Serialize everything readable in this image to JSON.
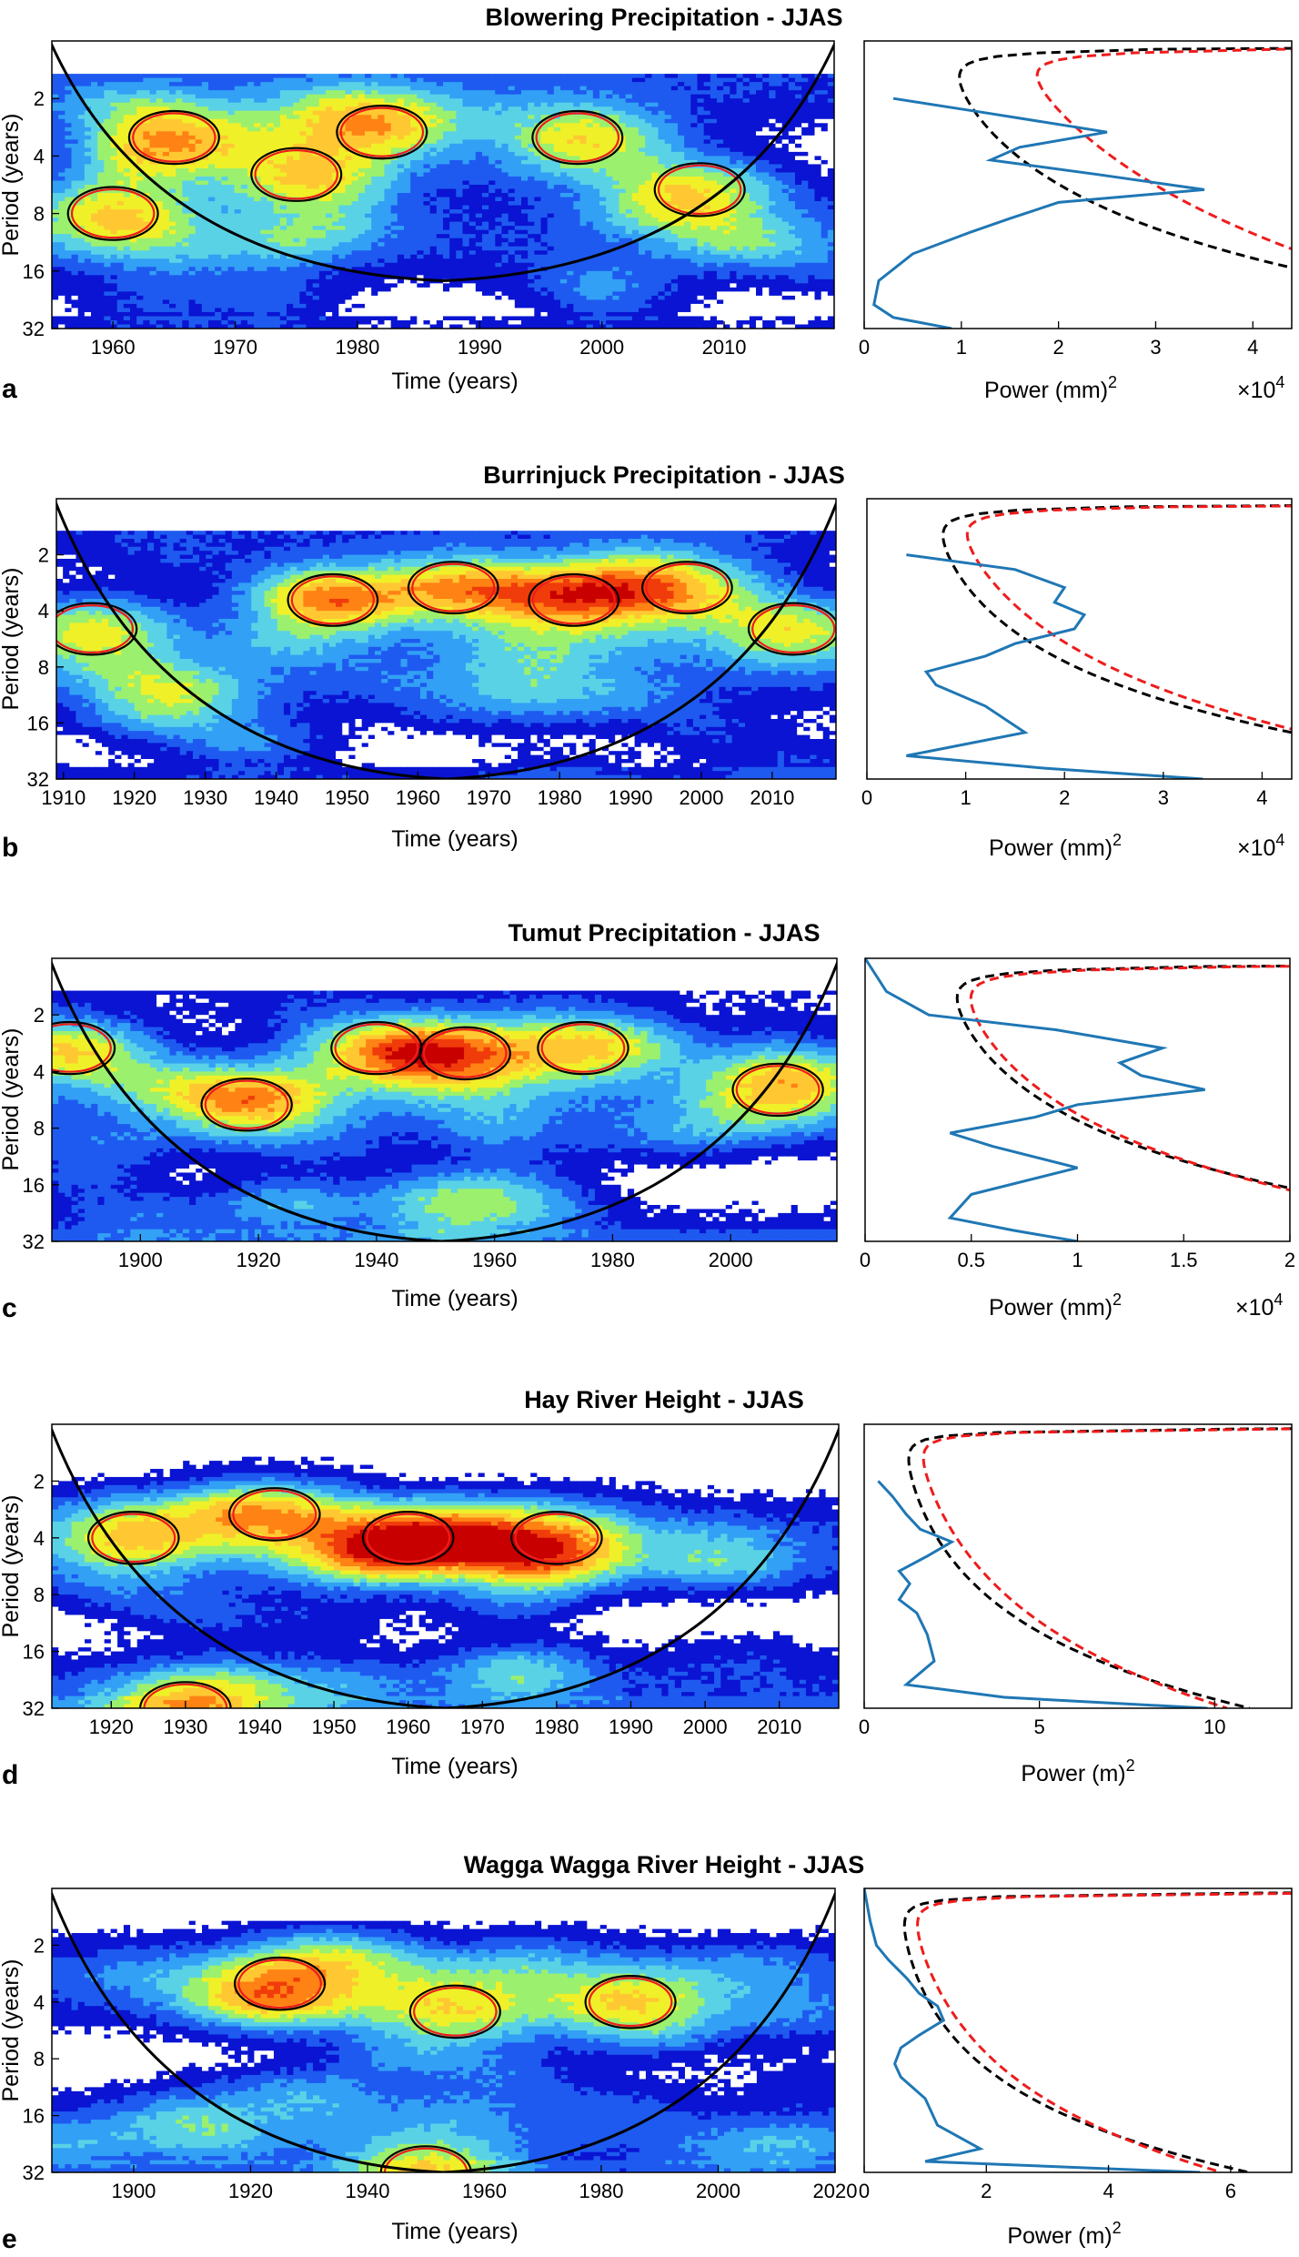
{
  "figure": {
    "colors": {
      "wavelet": [
        "#0a14d2",
        "#1e5af0",
        "#32a0f5",
        "#5ad2e6",
        "#9bf06e",
        "#f0f028",
        "#ffc832",
        "#ff8214",
        "#f03c0a",
        "#c80000"
      ],
      "global_spectrum": "#1f77b4",
      "significance_red": "#ee1c1c",
      "significance_black": "#000000",
      "coi_line": "#000000"
    },
    "shared": {
      "ylabel_left": "Period (years)",
      "xlabel_left": "Time (years)",
      "yticks": [
        "2",
        "4",
        "8",
        "16",
        "32"
      ]
    }
  },
  "chart_data": [
    {
      "type": "heatmap",
      "panel_letter": "a",
      "title": "Blowering Precipitation - JJAS",
      "xlabel": "Time (years)",
      "ylabel": "Period (years)",
      "xlim": [
        1955,
        2019
      ],
      "xticks": [
        "1960",
        "1970",
        "1980",
        "1990",
        "2000",
        "2010"
      ],
      "yticks": [
        2,
        4,
        8,
        16,
        32
      ],
      "ylim": [
        1,
        32
      ],
      "coi": {
        "left_year": 1955,
        "right_year": 2019,
        "bottom_year": 1987,
        "bottom_period": 18
      },
      "high_power_blobs": [
        [
          1965,
          3.2
        ],
        [
          1975,
          5.0
        ],
        [
          1982,
          3.0
        ],
        [
          1998,
          3.2
        ],
        [
          2008,
          6.0
        ],
        [
          1960,
          8.0
        ]
      ],
      "global_spectrum": {
        "type": "line",
        "xlabel": "Power (mm)",
        "xlabel_superscript": "2",
        "multiplier": "×10",
        "multiplier_superscript": "4",
        "xlim": [
          0,
          4.4
        ],
        "xticks": [
          "0",
          "1",
          "2",
          "3",
          "4"
        ],
        "periods": [
          2.0,
          2.4,
          3.0,
          3.6,
          4.2,
          5.0,
          6.0,
          7.0,
          8.5,
          10,
          13,
          18,
          24,
          28,
          32
        ],
        "power": [
          0.3,
          1.3,
          2.5,
          1.6,
          1.3,
          2.4,
          3.5,
          2.0,
          1.5,
          1.1,
          0.5,
          0.15,
          0.1,
          0.3,
          0.9
        ],
        "sig_red": {
          "a": 0.5,
          "b": 6.8,
          "c": 0.35
        },
        "sig_black": {
          "a": 0.4,
          "b": 7.8,
          "c": 0.55
        }
      }
    },
    {
      "type": "heatmap",
      "panel_letter": "b",
      "title": "Burrinjuck Precipitation - JJAS",
      "xlabel": "Time (years)",
      "ylabel": "Period (years)",
      "xlim": [
        1909,
        2019
      ],
      "xticks": [
        "1910",
        "1920",
        "1930",
        "1940",
        "1950",
        "1960",
        "1970",
        "1980",
        "1990",
        "2000",
        "2010"
      ],
      "yticks": [
        2,
        4,
        8,
        16,
        32
      ],
      "ylim": [
        1,
        32
      ],
      "coi": {
        "left_year": 1909,
        "right_year": 2019,
        "bottom_year": 1964,
        "bottom_period": 32
      },
      "high_power_blobs": [
        [
          1914,
          5.0
        ],
        [
          1948,
          3.5
        ],
        [
          1965,
          3.0
        ],
        [
          1982,
          3.5
        ],
        [
          1998,
          3.0
        ],
        [
          2013,
          5.0
        ]
      ],
      "global_spectrum": {
        "type": "line",
        "xlabel": "Power (mm)",
        "xlabel_superscript": "2",
        "multiplier": "×10",
        "multiplier_superscript": "4",
        "xlim": [
          0,
          4.3
        ],
        "xticks": [
          "0",
          "1",
          "2",
          "3",
          "4"
        ],
        "periods": [
          2.0,
          2.4,
          3.0,
          3.6,
          4.2,
          5.0,
          6.0,
          7.0,
          8.5,
          10,
          13,
          18,
          24,
          28,
          32
        ],
        "power": [
          0.4,
          1.5,
          2.0,
          1.9,
          2.2,
          2.1,
          1.5,
          1.2,
          0.6,
          0.7,
          1.2,
          1.6,
          0.4,
          1.8,
          3.4
        ],
        "sig_red": {
          "a": 0.4,
          "b": 6.5,
          "c": 0.5
        },
        "sig_black": {
          "a": 0.35,
          "b": 7.0,
          "c": 0.6
        }
      }
    },
    {
      "type": "heatmap",
      "panel_letter": "c",
      "title": "Tumut Precipitation - JJAS",
      "xlabel": "Time (years)",
      "ylabel": "Period (years)",
      "xlim": [
        1885,
        2018
      ],
      "xticks": [
        "1900",
        "1920",
        "1940",
        "1960",
        "1980",
        "2000"
      ],
      "yticks": [
        2,
        4,
        8,
        16,
        32
      ],
      "ylim": [
        1,
        32
      ],
      "coi": {
        "left_year": 1885,
        "right_year": 2018,
        "bottom_year": 1951,
        "bottom_period": 32
      },
      "high_power_blobs": [
        [
          1888,
          3.0
        ],
        [
          1918,
          6.0
        ],
        [
          1940,
          3.0
        ],
        [
          1955,
          3.2
        ],
        [
          1975,
          3.0
        ],
        [
          2008,
          5.0
        ]
      ],
      "global_spectrum": {
        "type": "line",
        "xlabel": "Power (mm)",
        "xlabel_superscript": "2",
        "multiplier": "×10",
        "multiplier_superscript": "4",
        "xlim": [
          0,
          2.0
        ],
        "xticks": [
          "0",
          "0.5",
          "1",
          "1.5",
          "2"
        ],
        "periods": [
          1.0,
          1.5,
          2.0,
          2.4,
          3.0,
          3.6,
          4.2,
          5.0,
          6.0,
          7.0,
          8.5,
          10,
          13,
          18,
          24,
          28,
          32
        ],
        "power": [
          0.0,
          0.1,
          0.3,
          0.9,
          1.4,
          1.2,
          1.3,
          1.6,
          1.0,
          0.8,
          0.4,
          0.6,
          1.0,
          0.5,
          0.4,
          0.7,
          1.0
        ],
        "sig_red": {
          "a": 0.25,
          "b": 3.1,
          "c": 0.55
        },
        "sig_black": {
          "a": 0.22,
          "b": 3.4,
          "c": 0.6
        }
      }
    },
    {
      "type": "heatmap",
      "panel_letter": "d",
      "title": "Hay River Height - JJAS",
      "xlabel": "Time (years)",
      "ylabel": "Period (years)",
      "xlim": [
        1912,
        2018
      ],
      "xticks": [
        "1920",
        "1930",
        "1940",
        "1950",
        "1960",
        "1970",
        "1980",
        "1990",
        "2000",
        "2010"
      ],
      "yticks": [
        2,
        4,
        8,
        16,
        32
      ],
      "ylim": [
        1,
        32
      ],
      "coi": {
        "left_year": 1912,
        "right_year": 2018,
        "bottom_year": 1965,
        "bottom_period": 32
      },
      "high_power_blobs": [
        [
          1923,
          4.0
        ],
        [
          1942,
          3.0
        ],
        [
          1960,
          4.0
        ],
        [
          1980,
          4.0
        ],
        [
          1930,
          32.0
        ]
      ],
      "global_spectrum": {
        "type": "line",
        "xlabel": "Power (m)",
        "xlabel_superscript": "2",
        "multiplier": "",
        "multiplier_superscript": "",
        "xlim": [
          0,
          12.2
        ],
        "xticks": [
          "0",
          "5",
          "10"
        ],
        "periods": [
          2.0,
          2.4,
          3.0,
          3.6,
          4.2,
          5.0,
          6.0,
          7.0,
          8.5,
          10,
          13,
          18,
          24,
          28,
          32
        ],
        "power": [
          0.4,
          0.8,
          1.2,
          1.6,
          2.5,
          1.8,
          1.0,
          1.3,
          1.0,
          1.5,
          1.8,
          2.0,
          1.2,
          4.0,
          9.8
        ],
        "sig_red": {
          "a": 0.55,
          "b": 9.8,
          "c": 0.45
        },
        "sig_black": {
          "a": 0.5,
          "b": 10.5,
          "c": 0.55
        }
      }
    },
    {
      "type": "heatmap",
      "panel_letter": "e",
      "title": "Wagga Wagga River Height - JJAS",
      "xlabel": "Time (years)",
      "ylabel": "Period (years)",
      "xlim": [
        1886,
        2020
      ],
      "xticks": [
        "1900",
        "1920",
        "1940",
        "1960",
        "1980",
        "2000",
        "2020"
      ],
      "yticks": [
        2,
        4,
        8,
        16,
        32
      ],
      "ylim": [
        1,
        32
      ],
      "coi": {
        "left_year": 1886,
        "right_year": 2020,
        "bottom_year": 1953,
        "bottom_period": 32
      },
      "high_power_blobs": [
        [
          1925,
          3.2
        ],
        [
          1955,
          4.5
        ],
        [
          1985,
          4.0
        ],
        [
          1950,
          32.0
        ]
      ],
      "global_spectrum": {
        "type": "line",
        "xlabel": "Power (m)",
        "xlabel_superscript": "2",
        "multiplier": "",
        "multiplier_superscript": "",
        "xlim": [
          0,
          7.0
        ],
        "xticks": [
          "0",
          "2",
          "4",
          "6"
        ],
        "periods": [
          1.0,
          1.5,
          2.0,
          2.4,
          3.0,
          3.6,
          4.2,
          5.0,
          6.0,
          7.0,
          8.5,
          10,
          13,
          18,
          24,
          28,
          32
        ],
        "power": [
          0.0,
          0.1,
          0.2,
          0.4,
          0.7,
          0.9,
          1.2,
          1.3,
          0.9,
          0.6,
          0.5,
          0.6,
          1.0,
          1.2,
          1.9,
          1.0,
          5.5
        ],
        "sig_red": {
          "a": 0.35,
          "b": 5.5,
          "c": 0.5
        },
        "sig_black": {
          "a": 0.3,
          "b": 6.0,
          "c": 0.6
        }
      }
    }
  ]
}
